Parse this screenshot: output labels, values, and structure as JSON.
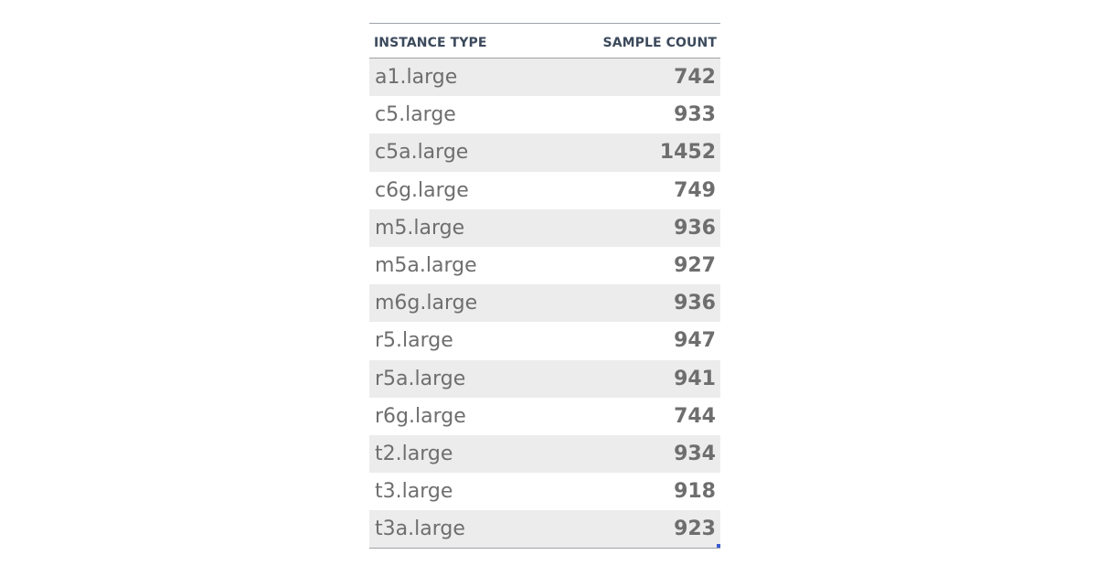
{
  "chart_data": {
    "type": "table",
    "columns": [
      "INSTANCE TYPE",
      "SAMPLE COUNT"
    ],
    "rows": [
      {
        "instance_type": "a1.large",
        "sample_count": "742"
      },
      {
        "instance_type": "c5.large",
        "sample_count": "933"
      },
      {
        "instance_type": "c5a.large",
        "sample_count": "1452"
      },
      {
        "instance_type": "c6g.large",
        "sample_count": "749"
      },
      {
        "instance_type": "m5.large",
        "sample_count": "936"
      },
      {
        "instance_type": "m5a.large",
        "sample_count": "927"
      },
      {
        "instance_type": "m6g.large",
        "sample_count": "936"
      },
      {
        "instance_type": "r5.large",
        "sample_count": "947"
      },
      {
        "instance_type": "r5a.large",
        "sample_count": "941"
      },
      {
        "instance_type": "r6g.large",
        "sample_count": "744"
      },
      {
        "instance_type": "t2.large",
        "sample_count": "934"
      },
      {
        "instance_type": "t3.large",
        "sample_count": "918"
      },
      {
        "instance_type": "t3a.large",
        "sample_count": "923"
      }
    ]
  },
  "colors": {
    "header_text": "#3c4a5c",
    "cell_text": "#6e6e6e",
    "stripe": "#ececec",
    "rule": "#9ea1a6",
    "handle": "#3b5bd1"
  }
}
